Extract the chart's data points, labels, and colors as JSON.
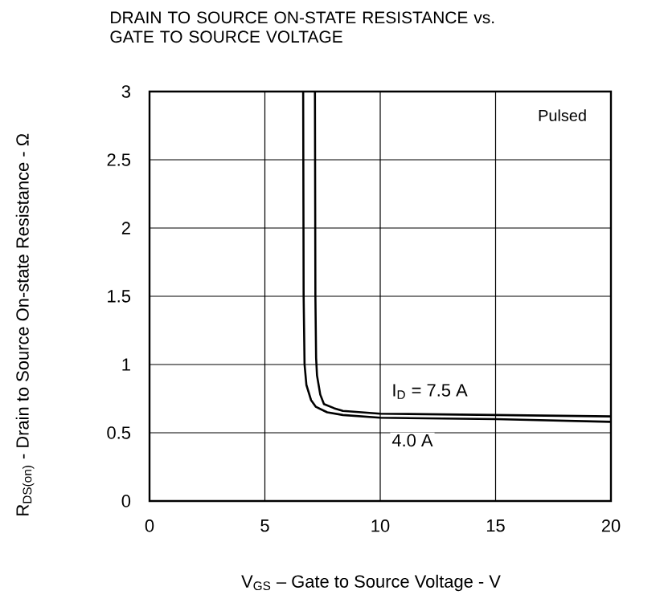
{
  "chart_data": {
    "type": "line",
    "title": "DRAIN TO SOURCE ON-STATE RESISTANCE vs. GATE TO SOURCE VOLTAGE",
    "xlabel": "V$_{GS}$ – Gate to Source Voltage - V",
    "ylabel": "R$_{DS(on)}$ - Drain to Source On-state Resistance - Ω",
    "annotations": [
      "Pulsed"
    ],
    "series": [
      {
        "name": "I$_{D}$ = 7.5 A",
        "color": "#000000",
        "x": [
          7.17,
          7.19,
          7.22,
          7.26,
          7.4,
          7.56,
          8.0,
          8.38,
          10,
          15,
          20
        ],
        "values": [
          3.0,
          1.5,
          1.05,
          0.92,
          0.78,
          0.71,
          0.68,
          0.66,
          0.64,
          0.63,
          0.62
        ]
      },
      {
        "name": "4.0 A",
        "color": "#000000",
        "x": [
          6.66,
          6.68,
          6.72,
          6.8,
          7.0,
          7.21,
          7.7,
          8.38,
          10,
          15,
          20
        ],
        "values": [
          3.0,
          1.5,
          1.0,
          0.85,
          0.74,
          0.69,
          0.65,
          0.63,
          0.61,
          0.6,
          0.58
        ]
      }
    ],
    "xlim": [
      0,
      20
    ],
    "xticks": [
      0,
      5,
      10,
      15,
      20
    ],
    "ylim": [
      0,
      3
    ],
    "yticks": [
      0,
      0.5,
      1,
      1.5,
      2,
      2.5,
      3
    ],
    "grid": true,
    "marker": "none",
    "line_style": "solid"
  }
}
